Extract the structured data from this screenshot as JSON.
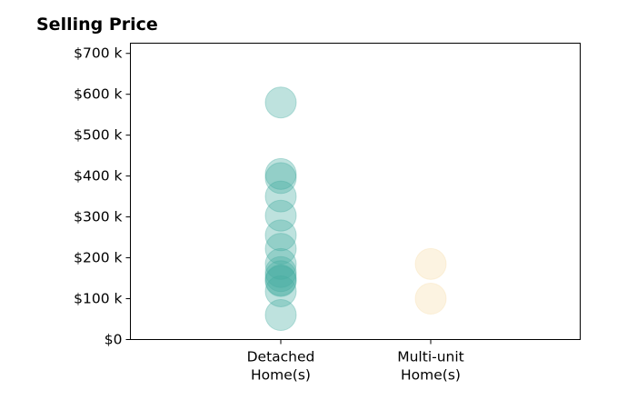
{
  "chart_data": {
    "type": "scatter",
    "title": "Selling Price",
    "xlabel": "",
    "ylabel": "",
    "categories": [
      "Detached\nHome(s)",
      "Multi-unit\nHome(s)"
    ],
    "ylim": [
      0,
      725000
    ],
    "yticks": [
      0,
      100000,
      200000,
      300000,
      400000,
      500000,
      600000,
      700000
    ],
    "ytick_labels": [
      "$0",
      "$100 k",
      "$200 k",
      "$300 k",
      "$400 k",
      "$500 k",
      "$600 k",
      "$700 k"
    ],
    "grid": false,
    "series": [
      {
        "category": "Detached\nHome(s)",
        "color": "#45ada0",
        "values": [
          580000,
          405000,
          395000,
          350000,
          303000,
          255000,
          222000,
          185000,
          165000,
          155000,
          145000,
          143000,
          118000,
          60000
        ]
      },
      {
        "category": "Multi-unit\nHome(s)",
        "color": "#f5dca8",
        "values": [
          185000,
          100000
        ]
      }
    ]
  }
}
